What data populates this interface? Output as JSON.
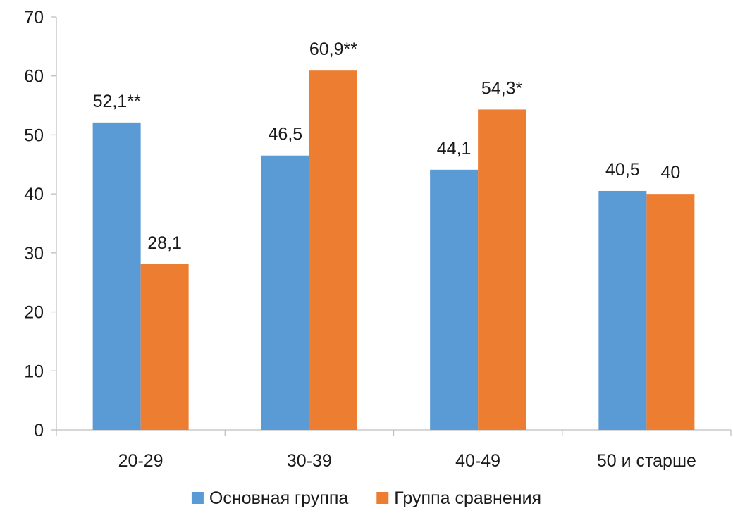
{
  "chart_data": {
    "type": "bar",
    "title": "",
    "xlabel": "",
    "ylabel": "",
    "ylim": [
      0,
      70
    ],
    "yticks": [
      0,
      10,
      20,
      30,
      40,
      50,
      60,
      70
    ],
    "grid": false,
    "legend_position": "bottom",
    "categories": [
      "20-29",
      "30-39",
      "40-49",
      "50 и старше"
    ],
    "series": [
      {
        "name": "Основная группа",
        "color": "#5B9BD5",
        "values": [
          52.1,
          46.5,
          44.1,
          40.5
        ],
        "labels": [
          "52,1**",
          "46,5",
          "44,1",
          "40,5"
        ]
      },
      {
        "name": "Группа сравнения",
        "color": "#ED7D31",
        "values": [
          28.1,
          60.9,
          54.3,
          40
        ],
        "labels": [
          "28,1",
          "60,9**",
          "54,3*",
          "40"
        ]
      }
    ]
  }
}
